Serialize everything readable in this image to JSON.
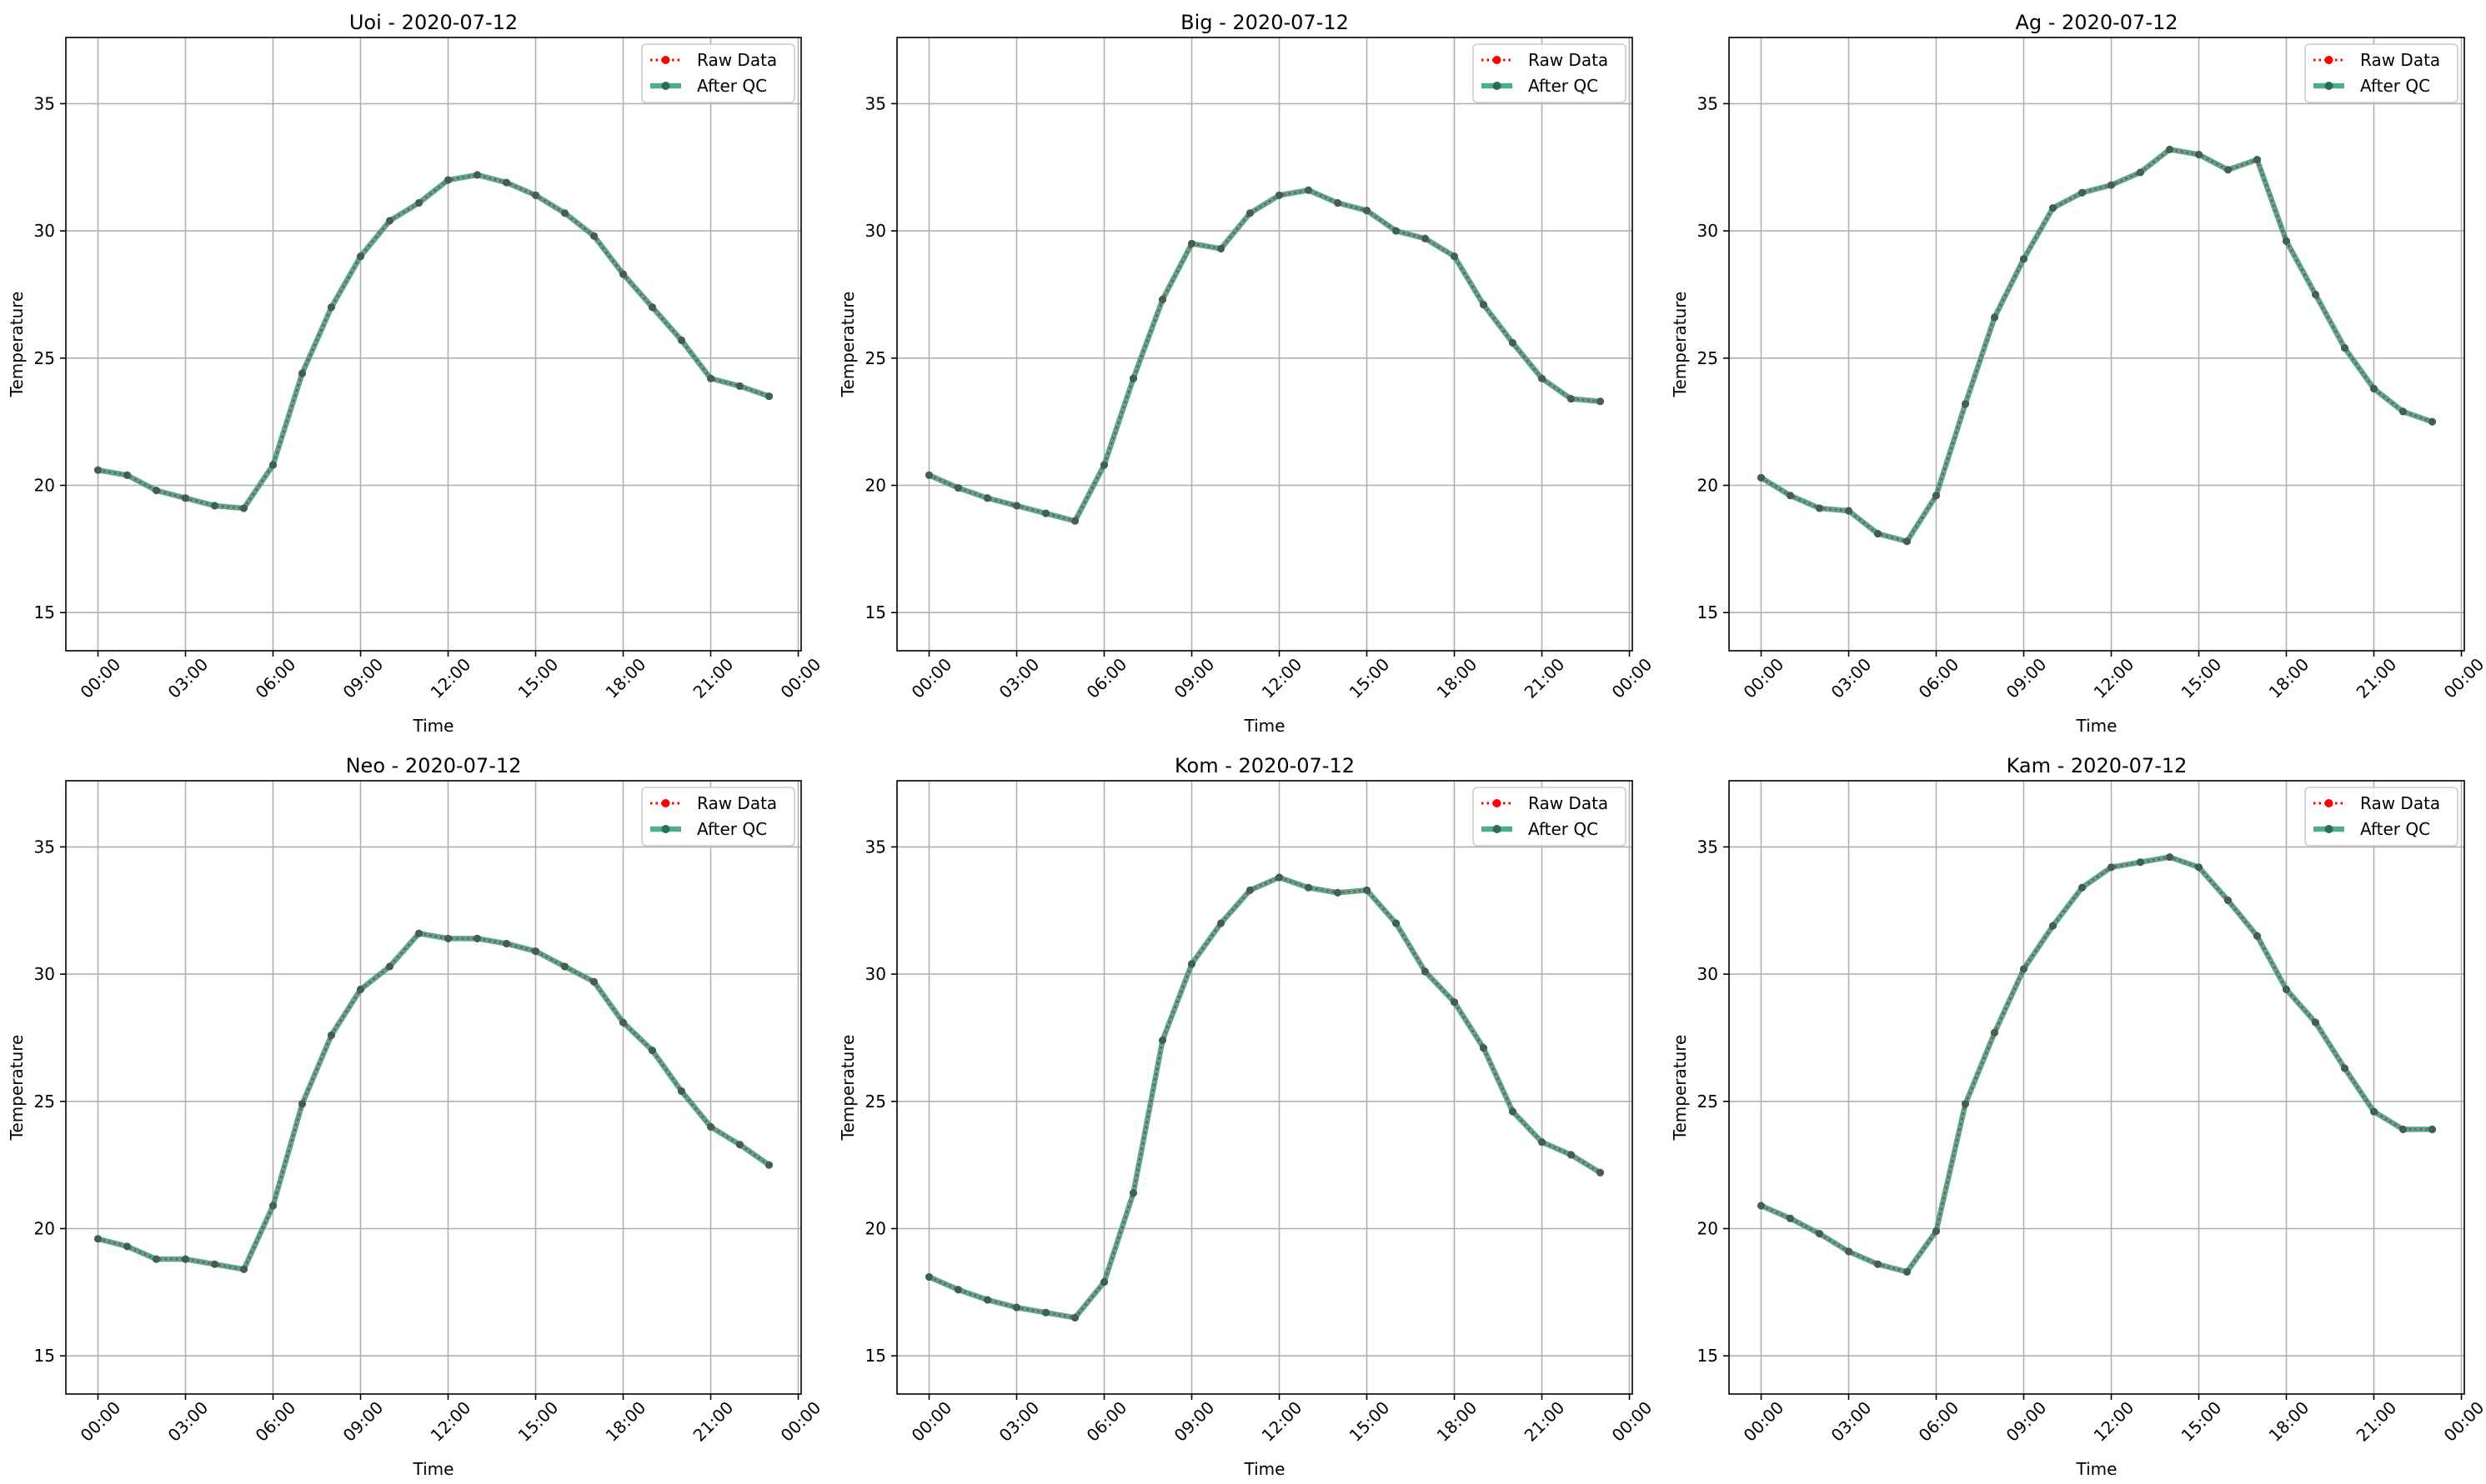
{
  "figure": {
    "legend": {
      "raw_label": "Raw Data",
      "qc_label": "After QC"
    },
    "colors": {
      "raw": "#ff0000",
      "qc": "#2e9d7e",
      "qc_marker": "#2a6b5a",
      "grid": "#b0b0b0"
    }
  },
  "chart_data": [
    {
      "type": "line",
      "title": "Uoi - 2020-07-12",
      "xlabel": "Time",
      "ylabel": "Temperature",
      "xlim": [
        -1.1,
        24.1
      ],
      "ylim": [
        13.5,
        37.6
      ],
      "xticks": [
        0,
        3,
        6,
        9,
        12,
        15,
        18,
        21,
        24
      ],
      "xtick_labels": [
        "00:00",
        "03:00",
        "06:00",
        "09:00",
        "12:00",
        "15:00",
        "18:00",
        "21:00",
        "00:00"
      ],
      "yticks": [
        15,
        20,
        25,
        30,
        35
      ],
      "ytick_labels": [
        "15",
        "20",
        "25",
        "30",
        "35"
      ],
      "grid": true,
      "legend_position": "top-right",
      "x": [
        0,
        1,
        2,
        3,
        4,
        5,
        6,
        7,
        8,
        9,
        10,
        11,
        12,
        13,
        14,
        15,
        16,
        17,
        18,
        19,
        20,
        21,
        22,
        23
      ],
      "series": [
        {
          "name": "Raw Data",
          "style": "dotted",
          "values": [
            20.6,
            20.4,
            19.8,
            19.5,
            19.2,
            19.1,
            20.8,
            24.4,
            27.0,
            29.0,
            30.4,
            31.1,
            32.0,
            32.2,
            31.9,
            31.4,
            30.7,
            29.8,
            28.3,
            27.0,
            25.7,
            24.2,
            23.9,
            23.5
          ]
        },
        {
          "name": "After QC",
          "style": "solid",
          "values": [
            20.6,
            20.4,
            19.8,
            19.5,
            19.2,
            19.1,
            20.8,
            24.4,
            27.0,
            29.0,
            30.4,
            31.1,
            32.0,
            32.2,
            31.9,
            31.4,
            30.7,
            29.8,
            28.3,
            27.0,
            25.7,
            24.2,
            23.9,
            23.5
          ]
        }
      ]
    },
    {
      "type": "line",
      "title": "Big - 2020-07-12",
      "xlabel": "Time",
      "ylabel": "Temperature",
      "xlim": [
        -1.1,
        24.1
      ],
      "ylim": [
        13.5,
        37.6
      ],
      "xticks": [
        0,
        3,
        6,
        9,
        12,
        15,
        18,
        21,
        24
      ],
      "xtick_labels": [
        "00:00",
        "03:00",
        "06:00",
        "09:00",
        "12:00",
        "15:00",
        "18:00",
        "21:00",
        "00:00"
      ],
      "yticks": [
        15,
        20,
        25,
        30,
        35
      ],
      "ytick_labels": [
        "15",
        "20",
        "25",
        "30",
        "35"
      ],
      "grid": true,
      "legend_position": "top-right",
      "x": [
        0,
        1,
        2,
        3,
        4,
        5,
        6,
        7,
        8,
        9,
        10,
        11,
        12,
        13,
        14,
        15,
        16,
        17,
        18,
        19,
        20,
        21,
        22,
        23
      ],
      "series": [
        {
          "name": "Raw Data",
          "style": "dotted",
          "values": [
            20.4,
            19.9,
            19.5,
            19.2,
            18.9,
            18.6,
            20.8,
            24.2,
            27.3,
            29.5,
            29.3,
            30.7,
            31.4,
            31.6,
            31.1,
            30.8,
            30.0,
            29.7,
            29.0,
            27.1,
            25.6,
            24.2,
            23.4,
            23.3
          ]
        },
        {
          "name": "After QC",
          "style": "solid",
          "values": [
            20.4,
            19.9,
            19.5,
            19.2,
            18.9,
            18.6,
            20.8,
            24.2,
            27.3,
            29.5,
            29.3,
            30.7,
            31.4,
            31.6,
            31.1,
            30.8,
            30.0,
            29.7,
            29.0,
            27.1,
            25.6,
            24.2,
            23.4,
            23.3
          ]
        }
      ]
    },
    {
      "type": "line",
      "title": "Ag - 2020-07-12",
      "xlabel": "Time",
      "ylabel": "Temperature",
      "xlim": [
        -1.1,
        24.1
      ],
      "ylim": [
        13.5,
        37.6
      ],
      "xticks": [
        0,
        3,
        6,
        9,
        12,
        15,
        18,
        21,
        24
      ],
      "xtick_labels": [
        "00:00",
        "03:00",
        "06:00",
        "09:00",
        "12:00",
        "15:00",
        "18:00",
        "21:00",
        "00:00"
      ],
      "yticks": [
        15,
        20,
        25,
        30,
        35
      ],
      "ytick_labels": [
        "15",
        "20",
        "25",
        "30",
        "35"
      ],
      "grid": true,
      "legend_position": "top-right",
      "x": [
        0,
        1,
        2,
        3,
        4,
        5,
        6,
        7,
        8,
        9,
        10,
        11,
        12,
        13,
        14,
        15,
        16,
        17,
        18,
        19,
        20,
        21,
        22,
        23
      ],
      "series": [
        {
          "name": "Raw Data",
          "style": "dotted",
          "values": [
            20.3,
            19.6,
            19.1,
            19.0,
            18.1,
            17.8,
            19.6,
            23.2,
            26.6,
            28.9,
            30.9,
            31.5,
            31.8,
            32.3,
            33.2,
            33.0,
            32.4,
            32.8,
            29.6,
            27.5,
            25.4,
            23.8,
            22.9,
            22.5
          ]
        },
        {
          "name": "After QC",
          "style": "solid",
          "values": [
            20.3,
            19.6,
            19.1,
            19.0,
            18.1,
            17.8,
            19.6,
            23.2,
            26.6,
            28.9,
            30.9,
            31.5,
            31.8,
            32.3,
            33.2,
            33.0,
            32.4,
            32.8,
            29.6,
            27.5,
            25.4,
            23.8,
            22.9,
            22.5
          ]
        }
      ]
    },
    {
      "type": "line",
      "title": "Neo - 2020-07-12",
      "xlabel": "Time",
      "ylabel": "Temperature",
      "xlim": [
        -1.1,
        24.1
      ],
      "ylim": [
        13.5,
        37.6
      ],
      "xticks": [
        0,
        3,
        6,
        9,
        12,
        15,
        18,
        21,
        24
      ],
      "xtick_labels": [
        "00:00",
        "03:00",
        "06:00",
        "09:00",
        "12:00",
        "15:00",
        "18:00",
        "21:00",
        "00:00"
      ],
      "yticks": [
        15,
        20,
        25,
        30,
        35
      ],
      "ytick_labels": [
        "15",
        "20",
        "25",
        "30",
        "35"
      ],
      "grid": true,
      "legend_position": "top-right",
      "x": [
        0,
        1,
        2,
        3,
        4,
        5,
        6,
        7,
        8,
        9,
        10,
        11,
        12,
        13,
        14,
        15,
        16,
        17,
        18,
        19,
        20,
        21,
        22,
        23
      ],
      "series": [
        {
          "name": "Raw Data",
          "style": "dotted",
          "values": [
            19.6,
            19.3,
            18.8,
            18.8,
            18.6,
            18.4,
            20.9,
            24.9,
            27.6,
            29.4,
            30.3,
            31.6,
            31.4,
            31.4,
            31.2,
            30.9,
            30.3,
            29.7,
            28.1,
            27.0,
            25.4,
            24.0,
            23.3,
            22.5
          ]
        },
        {
          "name": "After QC",
          "style": "solid",
          "values": [
            19.6,
            19.3,
            18.8,
            18.8,
            18.6,
            18.4,
            20.9,
            24.9,
            27.6,
            29.4,
            30.3,
            31.6,
            31.4,
            31.4,
            31.2,
            30.9,
            30.3,
            29.7,
            28.1,
            27.0,
            25.4,
            24.0,
            23.3,
            22.5
          ]
        }
      ]
    },
    {
      "type": "line",
      "title": "Kom - 2020-07-12",
      "xlabel": "Time",
      "ylabel": "Temperature",
      "xlim": [
        -1.1,
        24.1
      ],
      "ylim": [
        13.5,
        37.6
      ],
      "xticks": [
        0,
        3,
        6,
        9,
        12,
        15,
        18,
        21,
        24
      ],
      "xtick_labels": [
        "00:00",
        "03:00",
        "06:00",
        "09:00",
        "12:00",
        "15:00",
        "18:00",
        "21:00",
        "00:00"
      ],
      "yticks": [
        15,
        20,
        25,
        30,
        35
      ],
      "ytick_labels": [
        "15",
        "20",
        "25",
        "30",
        "35"
      ],
      "grid": true,
      "legend_position": "top-right",
      "x": [
        0,
        1,
        2,
        3,
        4,
        5,
        6,
        7,
        8,
        9,
        10,
        11,
        12,
        13,
        14,
        15,
        16,
        17,
        18,
        19,
        20,
        21,
        22,
        23
      ],
      "series": [
        {
          "name": "Raw Data",
          "style": "dotted",
          "values": [
            18.1,
            17.6,
            17.2,
            16.9,
            16.7,
            16.5,
            17.9,
            21.4,
            27.4,
            30.4,
            32.0,
            33.3,
            33.8,
            33.4,
            33.2,
            33.3,
            32.0,
            30.1,
            28.9,
            27.1,
            24.6,
            23.4,
            22.9,
            22.2
          ]
        },
        {
          "name": "After QC",
          "style": "solid",
          "values": [
            18.1,
            17.6,
            17.2,
            16.9,
            16.7,
            16.5,
            17.9,
            21.4,
            27.4,
            30.4,
            32.0,
            33.3,
            33.8,
            33.4,
            33.2,
            33.3,
            32.0,
            30.1,
            28.9,
            27.1,
            24.6,
            23.4,
            22.9,
            22.2
          ]
        }
      ]
    },
    {
      "type": "line",
      "title": "Kam - 2020-07-12",
      "xlabel": "Time",
      "ylabel": "Temperature",
      "xlim": [
        -1.1,
        24.1
      ],
      "ylim": [
        13.5,
        37.6
      ],
      "xticks": [
        0,
        3,
        6,
        9,
        12,
        15,
        18,
        21,
        24
      ],
      "xtick_labels": [
        "00:00",
        "03:00",
        "06:00",
        "09:00",
        "12:00",
        "15:00",
        "18:00",
        "21:00",
        "00:00"
      ],
      "yticks": [
        15,
        20,
        25,
        30,
        35
      ],
      "ytick_labels": [
        "15",
        "20",
        "25",
        "30",
        "35"
      ],
      "grid": true,
      "legend_position": "top-right",
      "x": [
        0,
        1,
        2,
        3,
        4,
        5,
        6,
        7,
        8,
        9,
        10,
        11,
        12,
        13,
        14,
        15,
        16,
        17,
        18,
        19,
        20,
        21,
        22,
        23
      ],
      "series": [
        {
          "name": "Raw Data",
          "style": "dotted",
          "values": [
            20.9,
            20.4,
            19.8,
            19.1,
            18.6,
            18.3,
            19.9,
            24.9,
            27.7,
            30.2,
            31.9,
            33.4,
            34.2,
            34.4,
            34.6,
            34.2,
            32.9,
            31.5,
            29.4,
            28.1,
            26.3,
            24.6,
            23.9,
            23.9
          ]
        },
        {
          "name": "After QC",
          "style": "solid",
          "values": [
            20.9,
            20.4,
            19.8,
            19.1,
            18.6,
            18.3,
            19.9,
            24.9,
            27.7,
            30.2,
            31.9,
            33.4,
            34.2,
            34.4,
            34.6,
            34.2,
            32.9,
            31.5,
            29.4,
            28.1,
            26.3,
            24.6,
            23.9,
            23.9
          ]
        }
      ]
    }
  ]
}
